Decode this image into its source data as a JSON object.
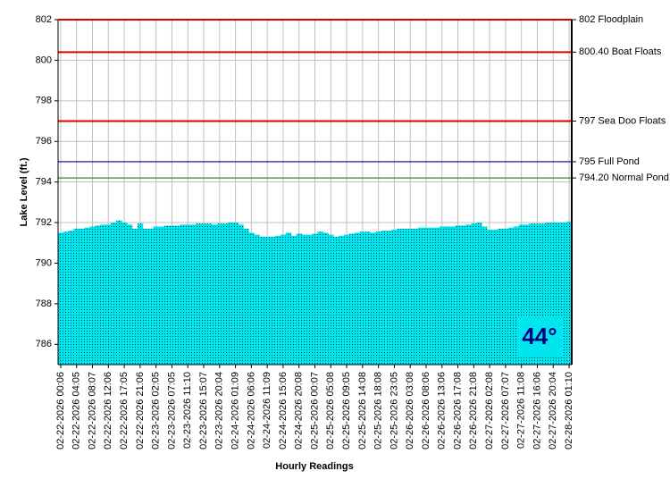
{
  "chart_data": {
    "type": "bar",
    "y_label": "Lake Level (ft.)",
    "x_label": "Hourly Readings",
    "badge": "44°",
    "color": "#00e5ee",
    "grid": true,
    "ylim": [
      785,
      802
    ],
    "yticks": [
      786,
      788,
      790,
      792,
      794,
      796,
      798,
      800,
      802
    ],
    "reference_lines": [
      {
        "value": 802,
        "label": "802 Floodplain",
        "color": "#e00000"
      },
      {
        "value": 800.4,
        "label": "800.40 Boat Floats",
        "color": "#e00000"
      },
      {
        "value": 797,
        "label": "797 Sea Doo Floats",
        "color": "#e00000"
      },
      {
        "value": 795,
        "label": "795 Full Pond",
        "color": "#000080"
      },
      {
        "value": 794.2,
        "label": "794.20 Normal Pond",
        "color": "#2e8b2e"
      }
    ],
    "categories": [
      "02-22-2026 00:06",
      null,
      null,
      "02-22-2026 04:05",
      null,
      null,
      "02-22-2026 08:07",
      null,
      null,
      "02-22-2026 12:06",
      null,
      null,
      "02-22-2026 17:05",
      null,
      null,
      "02-22-2026 21:06",
      null,
      null,
      "02-23-2026 02:05",
      null,
      null,
      "02-23-2026 07:05",
      null,
      null,
      "02-23-2026 11:10",
      null,
      null,
      "02-23-2026 15:07",
      null,
      null,
      "02-23-2026 20:04",
      null,
      null,
      "02-24-2026 01:09",
      null,
      null,
      "02-24-2026 06:06",
      null,
      null,
      "02-24-2026 11:09",
      null,
      null,
      "02-24-2026 15:06",
      null,
      null,
      "02-24-2026 20:08",
      null,
      null,
      "02-25-2026 00:07",
      null,
      null,
      "02-25-2026 05:08",
      null,
      null,
      "02-25-2026 09:05",
      null,
      null,
      "02-25-2026 14:08",
      null,
      null,
      "02-25-2026 18:08",
      null,
      null,
      "02-25-2026 23:05",
      null,
      null,
      "02-26-2026 03:08",
      null,
      null,
      "02-26-2026 08:06",
      null,
      null,
      "02-26-2026 13:06",
      null,
      null,
      "02-26-2026 17:08",
      null,
      null,
      "02-26-2026 21:08",
      null,
      null,
      "02-27-2026 02:08",
      null,
      null,
      "02-27-2026 07:07",
      null,
      null,
      "02-27-2026 11:08",
      null,
      null,
      "02-27-2026 16:06",
      null,
      null,
      "02-27-2026 20:04",
      null,
      null,
      "02-28-2026 01:10"
    ],
    "values": [
      791.5,
      791.55,
      791.6,
      791.7,
      791.7,
      791.75,
      791.8,
      791.85,
      791.9,
      791.9,
      792.0,
      792.1,
      792.0,
      791.9,
      791.7,
      791.95,
      791.7,
      791.7,
      791.8,
      791.8,
      791.85,
      791.85,
      791.85,
      791.9,
      791.9,
      791.9,
      791.95,
      791.95,
      791.95,
      791.9,
      791.95,
      791.95,
      792.0,
      792.0,
      791.9,
      791.7,
      791.5,
      791.4,
      791.3,
      791.3,
      791.3,
      791.35,
      791.4,
      791.5,
      791.35,
      791.45,
      791.4,
      791.4,
      791.45,
      791.55,
      791.5,
      791.4,
      791.3,
      791.35,
      791.4,
      791.45,
      791.5,
      791.55,
      791.55,
      791.5,
      791.55,
      791.6,
      791.6,
      791.65,
      791.7,
      791.7,
      791.7,
      791.7,
      791.75,
      791.75,
      791.75,
      791.75,
      791.8,
      791.8,
      791.8,
      791.85,
      791.85,
      791.9,
      791.95,
      792.0,
      791.8,
      791.65,
      791.65,
      791.7,
      791.7,
      791.75,
      791.8,
      791.9,
      791.9,
      791.95,
      791.95,
      791.95,
      792.0,
      792.0,
      792.0,
      792.0,
      792.05
    ]
  }
}
